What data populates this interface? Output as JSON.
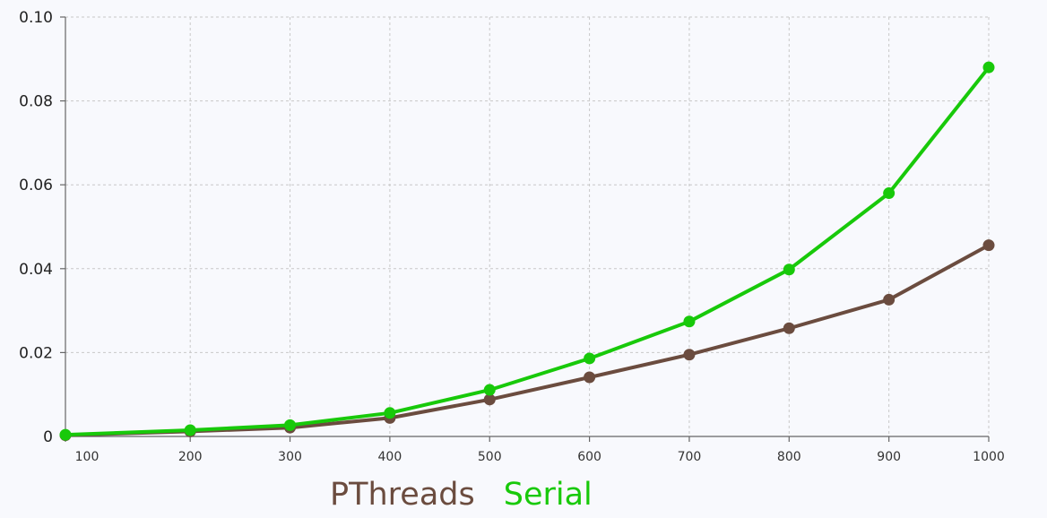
{
  "chart_data": {
    "type": "line",
    "x": [
      75,
      200,
      300,
      400,
      500,
      600,
      700,
      800,
      900,
      1000
    ],
    "x_tick_labels": [
      "100",
      "200",
      "300",
      "400",
      "500",
      "600",
      "700",
      "800",
      "900",
      "1000"
    ],
    "y_tick_labels": [
      "0",
      "0.02",
      "0.04",
      "0.06",
      "0.08",
      "0.10"
    ],
    "ylim": [
      0,
      0.1
    ],
    "grid": true,
    "legend_position": "bottom",
    "series": [
      {
        "name": "PThreads",
        "color": "#6b4c3f",
        "values": [
          0.0003,
          0.0012,
          0.0021,
          0.0044,
          0.0088,
          0.0141,
          0.0195,
          0.0258,
          0.0326,
          0.0456
        ]
      },
      {
        "name": "Serial",
        "color": "#18c90a",
        "values": [
          0.0004,
          0.0015,
          0.0027,
          0.0056,
          0.0111,
          0.0186,
          0.0274,
          0.0398,
          0.058,
          0.088
        ]
      }
    ]
  }
}
